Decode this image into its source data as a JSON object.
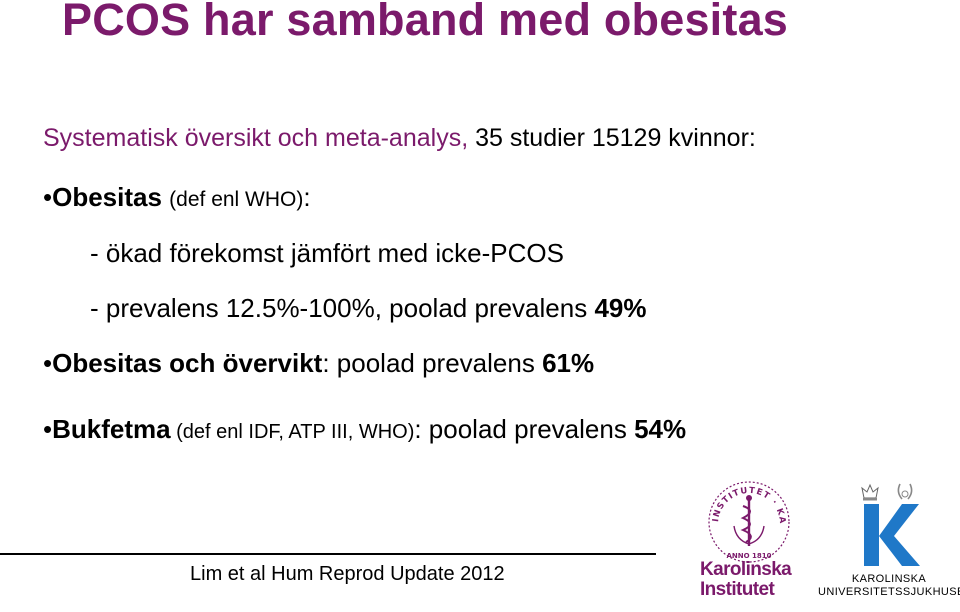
{
  "title": "PCOS har samband med obesitas",
  "subtitle": {
    "purple": "Systematisk översikt och meta-analys,",
    "black": "35 studier 15129 kvinnor:"
  },
  "bullets": {
    "obesitas": {
      "marker": "•",
      "term": "Obesitas",
      "paren": "(def enl WHO)",
      "colon": ":"
    },
    "sub1": "- ökad förekomst jämfört med icke-PCOS",
    "sub2": {
      "text": "- prevalens 12.5%-100%, poolad prevalens ",
      "value": "49%"
    },
    "overvikt": {
      "marker": "•",
      "term1": "Obesitas",
      "mid": " och ",
      "term2": "övervikt",
      "rest": ": poolad prevalens ",
      "value": "61%"
    },
    "bukfetma": {
      "marker": "•",
      "term": "Bukfetma",
      "paren": " (def  enl IDF, ATP III, WHO)",
      "rest": ": poolad prevalens ",
      "value": "54%"
    }
  },
  "citation": "Lim et al Hum Reprod Update 2012",
  "logos": {
    "ki": {
      "line1": "Karolinska",
      "line2": "Institutet",
      "color": "#7b1a6b"
    },
    "kus": {
      "line1": "KAROLINSKA",
      "line2": "UNIVERSITETSSJUKHUSET",
      "k_color": "#1f78c8"
    }
  },
  "colors": {
    "accent": "#7b1a6b"
  }
}
